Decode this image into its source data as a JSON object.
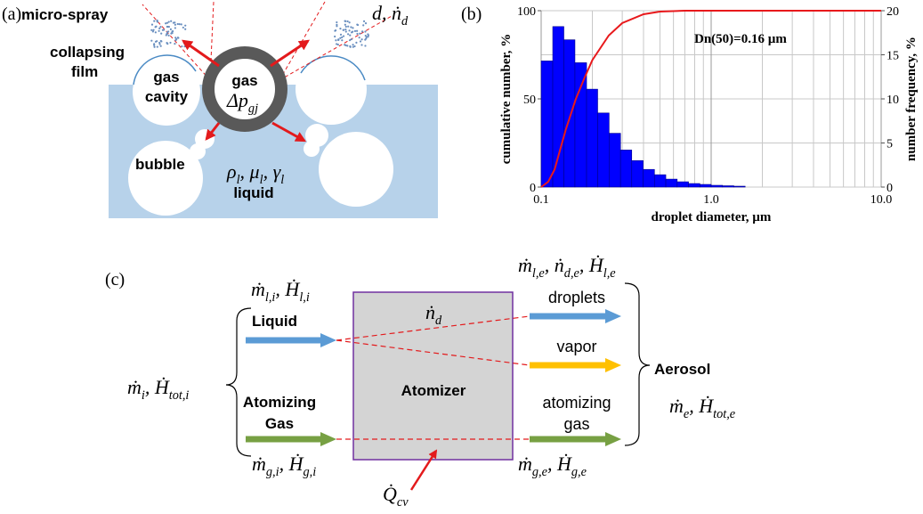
{
  "panel_a": {
    "label": "(a)",
    "micro_spray": "micro-spray",
    "collapsing": "collapsing",
    "film": "film",
    "cavity_gas": "gas",
    "cavity": "cavity",
    "gas": "gas",
    "pressure": [
      {
        "text": "Δp",
        "sub": "gj"
      }
    ],
    "bubble": "bubble",
    "properties": [
      {
        "text": "ρ",
        "sub": "l"
      },
      {
        "text": ", μ",
        "sub": "l"
      },
      {
        "text": ", γ",
        "sub": "l"
      }
    ],
    "liquid": "liquid",
    "droplet": [
      {
        "text": "d, ṅ",
        "sub": "d"
      }
    ]
  },
  "chart_data": {
    "type": "histogram",
    "panel_label": "(b)",
    "annotation": "Dn(50)=0.16 µm",
    "x_label": "droplet diameter, µm",
    "y_label": "cumulative number, %",
    "y2_label": "number frequency, %",
    "xscale": "log",
    "xlim": [
      0.1,
      10
    ],
    "xticks": [
      0.1,
      {
        "value": 1,
        "label": "1.0"
      },
      {
        "value": 10,
        "label": "10.0"
      }
    ],
    "xminorticks": [
      0.2,
      0.3,
      0.4,
      0.5,
      0.6,
      0.7,
      0.8,
      0.9,
      2,
      3,
      4,
      5,
      6,
      7,
      8,
      9
    ],
    "ylim": [
      0,
      100
    ],
    "yticks": [
      0,
      50,
      100
    ],
    "y2lim": [
      0,
      20
    ],
    "y2ticks": [
      0,
      5,
      10,
      15,
      20
    ],
    "grid": true,
    "histogram": {
      "color": "#0000ff",
      "axis": "y2",
      "bins": [
        0.1,
        0.117,
        0.136,
        0.158,
        0.185,
        0.215,
        0.251,
        0.293,
        0.341,
        0.398,
        0.464,
        0.541,
        0.631,
        0.736,
        0.858,
        1.0,
        1.166,
        1.359,
        1.585
      ],
      "values": [
        14.3,
        18.2,
        16.7,
        14.1,
        11.1,
        8.4,
        6.1,
        4.2,
        3.0,
        2.0,
        1.4,
        0.9,
        0.6,
        0.4,
        0.3,
        0.2,
        0.15,
        0.1
      ]
    },
    "cumulative": {
      "color": "#e8191c",
      "x": [
        0.1,
        0.11,
        0.12,
        0.13,
        0.14,
        0.16,
        0.18,
        0.2,
        0.25,
        0.3,
        0.4,
        0.5,
        0.7,
        1,
        10
      ],
      "values": [
        0,
        3,
        10,
        22,
        33,
        50,
        62,
        72,
        86,
        93,
        98,
        99.5,
        100,
        100,
        100
      ]
    }
  },
  "panel_c": {
    "label": "(c)",
    "liquid_in": [
      {
        "text": "ṁ",
        "sub": "l,i"
      },
      {
        "text": ", Ḣ",
        "sub": "l,i"
      }
    ],
    "liquid": "Liquid",
    "droplet_rate": [
      {
        "text": "ṅ",
        "sub": "d"
      }
    ],
    "liquid_out": [
      {
        "text": "ṁ",
        "sub": "l,e"
      },
      {
        "text": ", ṅ",
        "sub": "d,e"
      },
      {
        "text": ", Ḣ",
        "sub": "l,e"
      }
    ],
    "droplets": "droplets",
    "vapor": "vapor",
    "atomizing_out": "atomizing",
    "gas_out": "gas",
    "aerosol": "Aerosol",
    "aerosol_flow": [
      {
        "text": "ṁ",
        "sub": "e"
      },
      {
        "text": ", Ḣ",
        "sub": "tot,e"
      }
    ],
    "total_in": [
      {
        "text": "ṁ",
        "sub": "i"
      },
      {
        "text": ", Ḣ",
        "sub": "tot,i"
      }
    ],
    "atomizing_in": "Atomizing",
    "gas_in": "Gas",
    "atomizer": "Atomizer",
    "gas_in_flow": [
      {
        "text": "ṁ",
        "sub": "g,i"
      },
      {
        "text": ", Ḣ",
        "sub": "g,i"
      }
    ],
    "gas_out_flow": [
      {
        "text": "ṁ",
        "sub": "g,e"
      },
      {
        "text": ", Ḣ",
        "sub": "g,e"
      }
    ],
    "heat": [
      {
        "text": "Q̇",
        "sub": "cv"
      }
    ]
  }
}
